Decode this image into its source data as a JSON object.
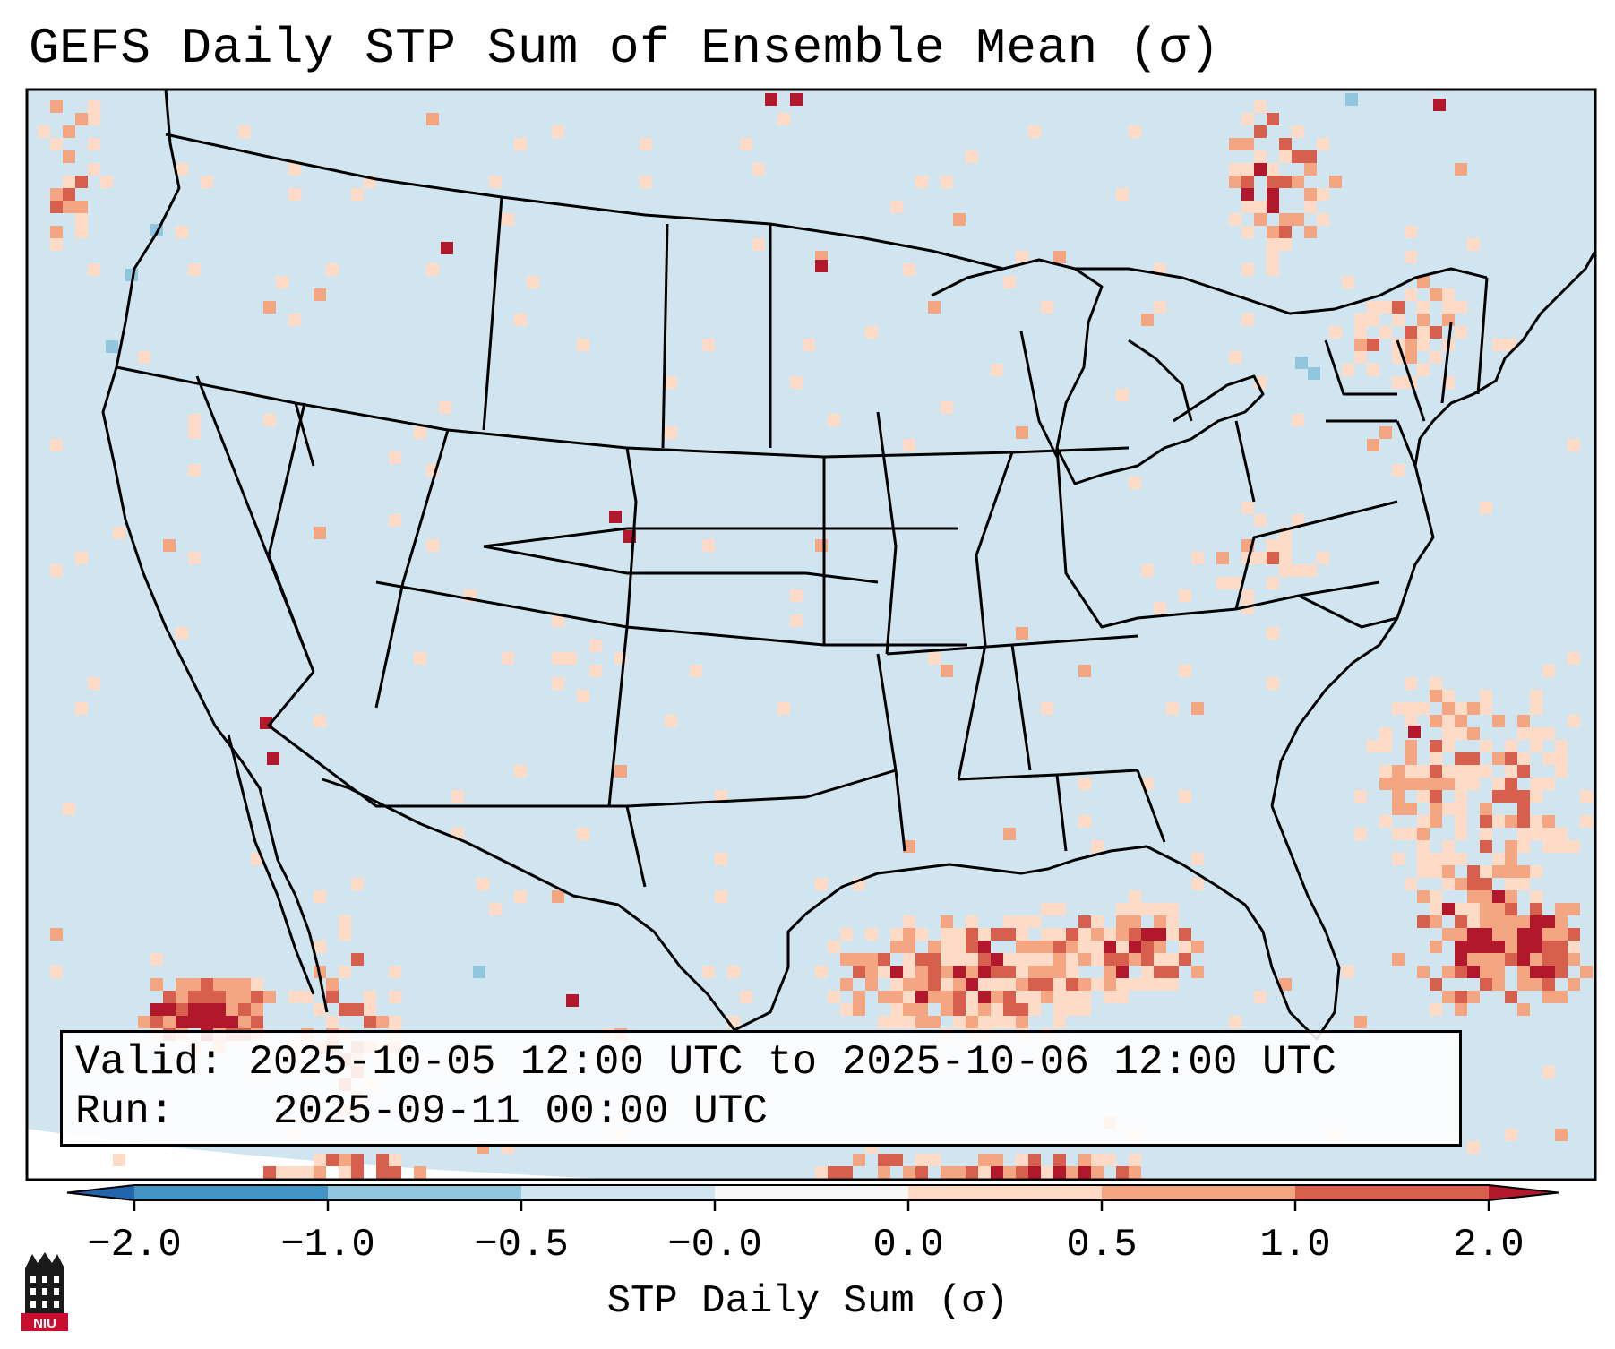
{
  "title": "GEFS Daily STP Sum of Ensemble Mean (σ)",
  "info": {
    "valid_label": "Valid:",
    "valid_value": "2025-10-05 12:00 UTC to 2025-10-06 12:00 UTC",
    "run_label": "Run:",
    "run_value": "2025-09-11 00:00 UTC"
  },
  "colorbar": {
    "title": "STP Daily Sum (σ)",
    "tick_labels": [
      "−2.0",
      "−1.0",
      "−0.5",
      "−0.0",
      "0.0",
      "0.5",
      "1.0",
      "2.0"
    ],
    "bins": [
      {
        "range": "< -2.0",
        "color": "#2166ac"
      },
      {
        "range": "-2.0 to -1.0",
        "color": "#4393c3"
      },
      {
        "range": "-1.0 to -0.5",
        "color": "#92c5de"
      },
      {
        "range": "-0.5 to -0.0",
        "color": "#d1e5f0"
      },
      {
        "range": "-0.0 to 0.0",
        "color": "#f7f7f7"
      },
      {
        "range": "0.0 to 0.5",
        "color": "#fddbc7"
      },
      {
        "range": "0.5 to 1.0",
        "color": "#f4a582"
      },
      {
        "range": "1.0 to 2.0",
        "color": "#d6604d"
      },
      {
        "range": "> 2.0",
        "color": "#b2182b"
      }
    ]
  },
  "map": {
    "projection": "Lambert Conformal, contiguous United States",
    "background_color": "#d1e5f0",
    "anomaly_regions": [
      {
        "area": "Western Gulf of Mexico and Texas coast",
        "level": "1.0 to 2.0",
        "color": "#d6604d"
      },
      {
        "area": "Atlantic east of Florida / Bahamas",
        "level": "> 2.0",
        "color": "#b2182b"
      },
      {
        "area": "Eastern Pacific off Baja California",
        "level": "> 2.0",
        "color": "#b2182b"
      },
      {
        "area": "Great Lakes and Northeast",
        "level": "0.0 to 1.0",
        "color": "#fddbc7"
      },
      {
        "area": "Northern Plains / Red River",
        "level": "> 2.0",
        "color": "#b2182b"
      },
      {
        "area": "Colorado front range",
        "level": "> 2.0",
        "color": "#b2182b"
      }
    ]
  },
  "logo": {
    "text": "NIU",
    "color": "#c8102e"
  }
}
